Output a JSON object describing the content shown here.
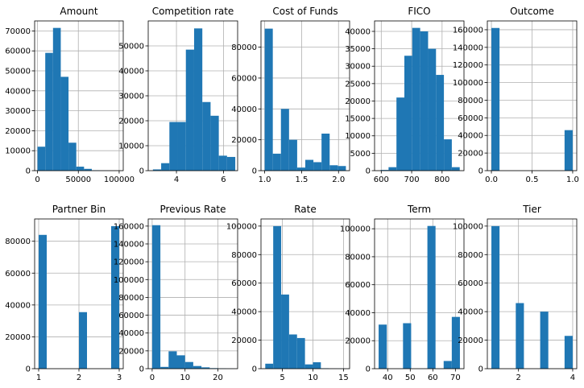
{
  "chart_data": [
    {
      "type": "bar",
      "title": "Amount",
      "xlim": [
        -3500,
        105000
      ],
      "ylim": [
        0,
        75000
      ],
      "xticks": [
        0,
        50000,
        100000
      ],
      "xtick_labels": [
        "0",
        "50000",
        "100000"
      ],
      "yticks": [
        0,
        10000,
        20000,
        30000,
        40000,
        50000,
        60000,
        70000
      ],
      "ytick_labels": [
        "0",
        "10000",
        "20000",
        "30000",
        "40000",
        "50000",
        "60000",
        "70000"
      ],
      "bins": [
        [
          0,
          9500,
          12000
        ],
        [
          9500,
          19000,
          59000
        ],
        [
          19000,
          28500,
          71500
        ],
        [
          28500,
          38000,
          47000
        ],
        [
          38000,
          47500,
          14000
        ],
        [
          47500,
          57000,
          2000
        ],
        [
          57000,
          66500,
          900
        ],
        [
          66500,
          76000,
          200
        ],
        [
          76000,
          85500,
          50
        ],
        [
          85500,
          95000,
          20
        ]
      ]
    },
    {
      "type": "bar",
      "title": "Competition rate",
      "xlim": [
        2.8,
        6.6
      ],
      "ylim": [
        0,
        60000
      ],
      "xticks": [
        4,
        6
      ],
      "xtick_labels": [
        "4",
        "6"
      ],
      "yticks": [
        0,
        10000,
        20000,
        30000,
        40000,
        50000
      ],
      "ytick_labels": [
        "0",
        "10000",
        "20000",
        "30000",
        "40000",
        "50000"
      ],
      "bins": [
        [
          3.0,
          3.35,
          500
        ],
        [
          3.35,
          3.7,
          3000
        ],
        [
          3.7,
          4.05,
          19500
        ],
        [
          4.05,
          4.4,
          19500
        ],
        [
          4.4,
          4.75,
          48500
        ],
        [
          4.75,
          5.1,
          57000
        ],
        [
          5.1,
          5.45,
          27500
        ],
        [
          5.45,
          5.8,
          22000
        ],
        [
          5.8,
          6.15,
          6000
        ],
        [
          6.15,
          6.5,
          5500
        ]
      ]
    },
    {
      "type": "bar",
      "title": "Cost of Funds",
      "xlim": [
        0.95,
        2.15
      ],
      "ylim": [
        0,
        97000
      ],
      "xticks": [
        1.0,
        1.5,
        2.0
      ],
      "xtick_labels": [
        "1.0",
        "1.5",
        "2.0"
      ],
      "yticks": [
        0,
        20000,
        40000,
        60000,
        80000
      ],
      "ytick_labels": [
        "0",
        "20000",
        "40000",
        "60000",
        "80000"
      ],
      "bins": [
        [
          1.0,
          1.11,
          92000
        ],
        [
          1.11,
          1.22,
          11000
        ],
        [
          1.22,
          1.33,
          40000
        ],
        [
          1.33,
          1.44,
          20000
        ],
        [
          1.44,
          1.55,
          2000
        ],
        [
          1.55,
          1.66,
          7000
        ],
        [
          1.66,
          1.77,
          5500
        ],
        [
          1.77,
          1.88,
          24000
        ],
        [
          1.88,
          1.99,
          3500
        ],
        [
          1.99,
          2.1,
          3000
        ]
      ]
    },
    {
      "type": "bar",
      "title": "FICO",
      "xlim": [
        578,
        872
      ],
      "ylim": [
        0,
        43000
      ],
      "xticks": [
        600,
        700,
        800
      ],
      "xtick_labels": [
        "600",
        "700",
        "800"
      ],
      "yticks": [
        0,
        5000,
        10000,
        15000,
        20000,
        25000,
        30000,
        35000,
        40000
      ],
      "ytick_labels": [
        "0",
        "5000",
        "10000",
        "15000",
        "20000",
        "25000",
        "30000",
        "35000",
        "40000"
      ],
      "bins": [
        [
          598,
          624,
          200
        ],
        [
          624,
          650,
          1000
        ],
        [
          650,
          676,
          21000
        ],
        [
          676,
          702,
          33000
        ],
        [
          702,
          728,
          41000
        ],
        [
          728,
          754,
          40000
        ],
        [
          754,
          780,
          35000
        ],
        [
          780,
          806,
          27500
        ],
        [
          806,
          832,
          9000
        ],
        [
          832,
          858,
          1000
        ]
      ]
    },
    {
      "type": "bar",
      "title": "Outcome",
      "xlim": [
        -0.05,
        1.05
      ],
      "ylim": [
        0,
        170000
      ],
      "xticks": [
        0.0,
        0.5,
        1.0
      ],
      "xtick_labels": [
        "0.0",
        "0.5",
        "1.0"
      ],
      "yticks": [
        0,
        20000,
        40000,
        60000,
        80000,
        100000,
        120000,
        140000,
        160000
      ],
      "ytick_labels": [
        "0",
        "20000",
        "40000",
        "60000",
        "80000",
        "100000",
        "120000",
        "140000",
        "160000"
      ],
      "bins": [
        [
          0.0,
          0.1,
          162000
        ],
        [
          0.9,
          1.0,
          46000
        ]
      ]
    },
    {
      "type": "bar",
      "title": "Partner Bin",
      "xlim": [
        0.9,
        3.1
      ],
      "ylim": [
        0,
        94000
      ],
      "xticks": [
        1,
        2,
        3
      ],
      "xtick_labels": [
        "1",
        "2",
        "3"
      ],
      "yticks": [
        0,
        20000,
        40000,
        60000,
        80000
      ],
      "ytick_labels": [
        "0",
        "20000",
        "40000",
        "60000",
        "80000"
      ],
      "bins": [
        [
          1.0,
          1.2,
          84000
        ],
        [
          2.0,
          2.2,
          35500
        ],
        [
          2.8,
          3.0,
          89500
        ]
      ]
    },
    {
      "type": "bar",
      "title": "Previous Rate",
      "xlim": [
        -1.2,
        26
      ],
      "ylim": [
        0,
        168000
      ],
      "xticks": [
        0,
        10,
        20
      ],
      "xtick_labels": [
        "0",
        "10",
        "20"
      ],
      "yticks": [
        0,
        20000,
        40000,
        60000,
        80000,
        100000,
        120000,
        140000,
        160000
      ],
      "ytick_labels": [
        "0",
        "20000",
        "40000",
        "60000",
        "80000",
        "100000",
        "120000",
        "140000",
        "160000"
      ],
      "bins": [
        [
          0,
          2.5,
          161000
        ],
        [
          2.5,
          5.0,
          2000
        ],
        [
          5.0,
          7.5,
          19500
        ],
        [
          7.5,
          10.0,
          15000
        ],
        [
          10.0,
          12.5,
          7500
        ],
        [
          12.5,
          15.0,
          3000
        ],
        [
          15.0,
          17.5,
          1500
        ],
        [
          17.5,
          20.0,
          600
        ],
        [
          20.0,
          22.5,
          300
        ],
        [
          22.5,
          25.0,
          100
        ]
      ]
    },
    {
      "type": "bar",
      "title": "Rate",
      "xlim": [
        1.5,
        16
      ],
      "ylim": [
        0,
        105000
      ],
      "xticks": [
        5,
        10,
        15
      ],
      "xtick_labels": [
        "5",
        "10",
        "15"
      ],
      "yticks": [
        0,
        20000,
        40000,
        60000,
        80000,
        100000
      ],
      "ytick_labels": [
        "0",
        "20000",
        "40000",
        "60000",
        "80000",
        "100000"
      ],
      "bins": [
        [
          2.2,
          3.5,
          3500
        ],
        [
          3.5,
          4.8,
          100000
        ],
        [
          4.8,
          6.1,
          52000
        ],
        [
          6.1,
          7.4,
          24000
        ],
        [
          7.4,
          8.7,
          21500
        ],
        [
          8.7,
          10.0,
          3000
        ],
        [
          10.0,
          11.3,
          4500
        ],
        [
          11.3,
          12.6,
          300
        ],
        [
          12.6,
          13.9,
          100
        ],
        [
          13.9,
          15.2,
          50
        ]
      ]
    },
    {
      "type": "bar",
      "title": "Term",
      "xlim": [
        34.2,
        73.8
      ],
      "ylim": [
        0,
        107000
      ],
      "xticks": [
        40,
        50,
        60,
        70
      ],
      "xtick_labels": [
        "40",
        "50",
        "60",
        "70"
      ],
      "yticks": [
        0,
        20000,
        40000,
        60000,
        80000,
        100000
      ],
      "ytick_labels": [
        "0",
        "20000",
        "40000",
        "60000",
        "80000",
        "100000"
      ],
      "bins": [
        [
          36.0,
          39.6,
          31500
        ],
        [
          46.8,
          50.4,
          32500
        ],
        [
          57.6,
          61.2,
          102000
        ],
        [
          64.8,
          68.4,
          5500
        ],
        [
          68.4,
          72.0,
          37000
        ]
      ]
    },
    {
      "type": "bar",
      "title": "Tier",
      "xlim": [
        0.85,
        4.15
      ],
      "ylim": [
        0,
        105000
      ],
      "xticks": [
        2,
        4
      ],
      "xtick_labels": [
        "2",
        "4"
      ],
      "yticks": [
        0,
        20000,
        40000,
        60000,
        80000,
        100000
      ],
      "ytick_labels": [
        "0",
        "20000",
        "40000",
        "60000",
        "80000",
        "100000"
      ],
      "bins": [
        [
          1.0,
          1.3,
          100000
        ],
        [
          1.9,
          2.2,
          46000
        ],
        [
          2.8,
          3.1,
          40000
        ],
        [
          3.7,
          4.0,
          23000
        ]
      ]
    }
  ]
}
